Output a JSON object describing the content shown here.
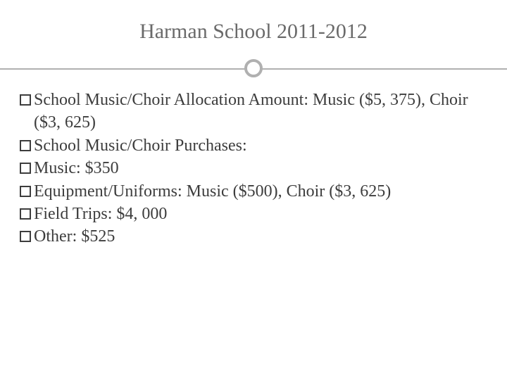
{
  "title": "Harman School 2011-2012",
  "bullet_border_color": "#3d3d3d",
  "text_color": "#3d3d3d",
  "title_color": "#6a6a6a",
  "divider_color": "#b0b0b0",
  "background": "#ffffff",
  "font_family": "Georgia, 'Times New Roman', serif",
  "title_fontsize": 30,
  "body_fontsize": 24,
  "items": [
    "School Music/Choir Allocation Amount: Music ($5, 375), Choir ($3, 625)",
    "School Music/Choir Purchases:",
    "Music: $350",
    "Equipment/Uniforms: Music ($500), Choir ($3, 625)",
    "Field Trips: $4, 000",
    "Other: $525"
  ]
}
